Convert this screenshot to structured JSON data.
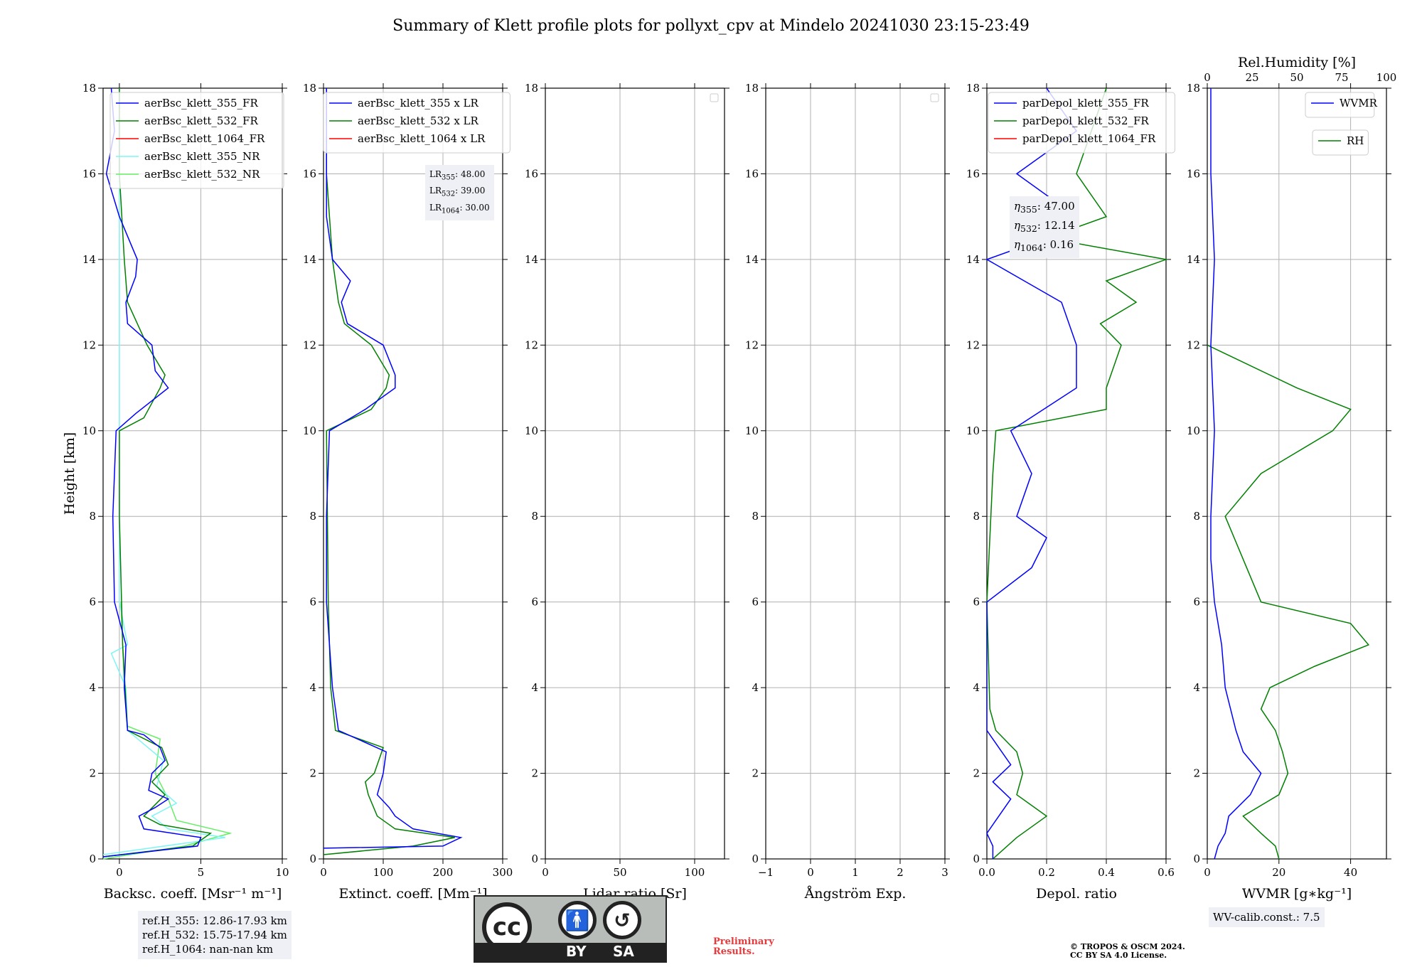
{
  "title": "Summary of Klett profile plots for pollyxt_cpv at Mindelo 20241030 23:15-23:49",
  "colors": {
    "blue": "#0000ff",
    "green": "#008000",
    "red": "#ff0000",
    "cyan": "#7ff5f5",
    "lightgreen": "#66ee66"
  },
  "y_axis": {
    "label": "Height [km]",
    "ticks": [
      "0",
      "2",
      "4",
      "6",
      "8",
      "10",
      "12",
      "14",
      "16",
      "18"
    ],
    "ylim": [
      0,
      18
    ]
  },
  "panels": [
    {
      "xlabel": "Backsc. coeff. [Msr⁻¹ m⁻¹]",
      "xticks": [
        "0",
        "5",
        "10"
      ],
      "xlim": [
        -1,
        10
      ]
    },
    {
      "xlabel": "Extinct. coeff. [Mm⁻¹]",
      "xticks": [
        "0",
        "100",
        "200",
        "300"
      ],
      "xlim": [
        0,
        300
      ]
    },
    {
      "xlabel": "Lidar ratio [Sr]",
      "xticks": [
        "0",
        "50",
        "100"
      ],
      "xlim": [
        0,
        120
      ]
    },
    {
      "xlabel": "Ångström Exp.",
      "xticks": [
        "−1",
        "0",
        "1",
        "2",
        "3"
      ],
      "xlim": [
        -1,
        3
      ]
    },
    {
      "xlabel": "Depol. ratio",
      "xticks": [
        "0.0",
        "0.2",
        "0.4",
        "0.6"
      ],
      "xlim": [
        0,
        0.6
      ]
    },
    {
      "xlabel": "WVMR [g∗kg⁻¹]",
      "xticks": [
        "0",
        "20",
        "40"
      ],
      "xlim": [
        0,
        50
      ],
      "top_label": "Rel.Humidity [%]",
      "top_ticks": [
        "0",
        "25",
        "50",
        "75",
        "100"
      ]
    }
  ],
  "legends": {
    "bsc": [
      "aerBsc_klett_355_FR",
      "aerBsc_klett_532_FR",
      "aerBsc_klett_1064_FR",
      "aerBsc_klett_355_NR",
      "aerBsc_klett_532_NR"
    ],
    "ext": [
      "aerBsc_klett_355 x LR",
      "aerBsc_klett_532 x LR",
      "aerBsc_klett_1064 x LR"
    ],
    "dep": [
      "parDepol_klett_355_FR",
      "parDepol_klett_532_FR",
      "parDepol_klett_1064_FR"
    ],
    "wv": "WVMR",
    "rh": "RH"
  },
  "lr_box": {
    "l355": "48.00",
    "l532": "39.00",
    "l1064": "30.00"
  },
  "eta_box": {
    "e355": "47.00",
    "e532": "12.14",
    "e1064": "0.16"
  },
  "ref_box": [
    "ref.H_355: 12.86-17.93 km",
    "ref.H_532: 15.75-17.94 km",
    "ref.H_1064: nan-nan km"
  ],
  "wv_calib": "WV-calib.const.: 7.5",
  "license": {
    "cc": "cc",
    "by": "BY",
    "sa": "SA"
  },
  "preliminary": [
    "Preliminary",
    "Results."
  ],
  "copyright": [
    "© TROPOS & OSCM 2024.",
    "CC BY SA 4.0 License."
  ],
  "chart_data": {
    "type": "line",
    "bsc_355_FR": [
      [
        0.05,
        -1.0
      ],
      [
        0.3,
        4.8
      ],
      [
        0.5,
        5.0
      ],
      [
        0.7,
        1.5
      ],
      [
        1.0,
        1.2
      ],
      [
        1.2,
        2.2
      ],
      [
        1.4,
        3.0
      ],
      [
        1.6,
        1.8
      ],
      [
        2.0,
        2.0
      ],
      [
        2.3,
        2.8
      ],
      [
        2.6,
        2.5
      ],
      [
        2.9,
        1.5
      ],
      [
        3.0,
        0.5
      ],
      [
        4.0,
        0.3
      ],
      [
        5.0,
        0.4
      ],
      [
        6.0,
        -0.3
      ],
      [
        8.0,
        -0.4
      ],
      [
        9.0,
        -0.3
      ],
      [
        10.0,
        -0.2
      ],
      [
        10.4,
        1.0
      ],
      [
        11.0,
        3.0
      ],
      [
        11.4,
        2.2
      ],
      [
        12.0,
        2.0
      ],
      [
        12.5,
        0.5
      ],
      [
        13.0,
        0.4
      ],
      [
        13.6,
        1.0
      ],
      [
        14.0,
        1.1
      ],
      [
        15.0,
        0.0
      ],
      [
        16.0,
        -0.8
      ],
      [
        17.0,
        -0.3
      ],
      [
        18.0,
        -0.5
      ]
    ],
    "bsc_532_FR": [
      [
        0.05,
        -1.0
      ],
      [
        0.3,
        4.5
      ],
      [
        0.6,
        5.6
      ],
      [
        0.8,
        2.5
      ],
      [
        1.0,
        1.5
      ],
      [
        1.5,
        2.8
      ],
      [
        1.8,
        2.0
      ],
      [
        2.2,
        3.0
      ],
      [
        2.6,
        2.6
      ],
      [
        3.0,
        0.5
      ],
      [
        5.0,
        0.2
      ],
      [
        8.0,
        0.0
      ],
      [
        10.0,
        0.0
      ],
      [
        10.3,
        1.5
      ],
      [
        11.0,
        2.5
      ],
      [
        11.3,
        2.8
      ],
      [
        12.0,
        1.7
      ],
      [
        13.0,
        0.5
      ],
      [
        14.0,
        0.3
      ],
      [
        16.0,
        0.0
      ],
      [
        18.0,
        0.0
      ]
    ],
    "bsc_355_NR": [
      [
        0.1,
        -1.0
      ],
      [
        0.5,
        6.5
      ],
      [
        0.7,
        3.0
      ],
      [
        1.0,
        2.0
      ],
      [
        1.3,
        3.5
      ],
      [
        1.7,
        2.3
      ],
      [
        2.3,
        2.7
      ],
      [
        3.0,
        0.5
      ],
      [
        4.0,
        0.4
      ],
      [
        4.8,
        -0.5
      ],
      [
        5.0,
        0.5
      ],
      [
        6.0,
        0.0
      ],
      [
        16.0,
        0.0
      ],
      [
        17.0,
        0.0
      ],
      [
        18.0,
        0.0
      ]
    ],
    "bsc_532_NR": [
      [
        0.0,
        -1.0
      ],
      [
        0.3,
        4.0
      ],
      [
        0.6,
        6.8
      ],
      [
        0.9,
        3.5
      ],
      [
        1.4,
        3.0
      ],
      [
        2.0,
        2.2
      ],
      [
        2.8,
        2.5
      ],
      [
        3.1,
        0.5
      ],
      [
        4.0,
        0.3
      ],
      [
        6.0,
        0.1
      ]
    ],
    "ext_355": [
      [
        0.25,
        0
      ],
      [
        0.3,
        200
      ],
      [
        0.5,
        230
      ],
      [
        0.7,
        150
      ],
      [
        1.0,
        120
      ],
      [
        1.2,
        110
      ],
      [
        1.5,
        90
      ],
      [
        2.0,
        100
      ],
      [
        2.5,
        105
      ],
      [
        3.0,
        25
      ],
      [
        4.0,
        15
      ],
      [
        6.0,
        5
      ],
      [
        8.0,
        5
      ],
      [
        10.0,
        10
      ],
      [
        10.5,
        70
      ],
      [
        11.0,
        120
      ],
      [
        11.3,
        120
      ],
      [
        12.0,
        100
      ],
      [
        12.5,
        40
      ],
      [
        13.0,
        30
      ],
      [
        13.5,
        45
      ],
      [
        14.0,
        15
      ],
      [
        15.0,
        5
      ],
      [
        16.0,
        5
      ],
      [
        18.0,
        5
      ]
    ],
    "ext_532": [
      [
        0.1,
        0
      ],
      [
        0.3,
        150
      ],
      [
        0.5,
        220
      ],
      [
        0.7,
        120
      ],
      [
        1.0,
        90
      ],
      [
        1.5,
        75
      ],
      [
        1.8,
        70
      ],
      [
        2.0,
        85
      ],
      [
        2.6,
        100
      ],
      [
        3.0,
        20
      ],
      [
        4.0,
        12
      ],
      [
        6.0,
        8
      ],
      [
        10.0,
        5
      ],
      [
        10.5,
        80
      ],
      [
        11.0,
        105
      ],
      [
        11.3,
        110
      ],
      [
        12.0,
        80
      ],
      [
        12.5,
        35
      ],
      [
        13.0,
        25
      ],
      [
        14.0,
        15
      ],
      [
        16.0,
        5
      ],
      [
        18.0,
        5
      ]
    ],
    "dep_355": [
      [
        0.0,
        0.02
      ],
      [
        0.3,
        0.02
      ],
      [
        0.6,
        0.0
      ],
      [
        1.0,
        0.04
      ],
      [
        1.4,
        0.08
      ],
      [
        1.8,
        0.02
      ],
      [
        2.2,
        0.08
      ],
      [
        2.6,
        0.04
      ],
      [
        3.0,
        0.0
      ],
      [
        6.0,
        0.0
      ],
      [
        6.8,
        0.15
      ],
      [
        7.5,
        0.2
      ],
      [
        8.0,
        0.1
      ],
      [
        9.0,
        0.15
      ],
      [
        10.0,
        0.08
      ],
      [
        11.0,
        0.3
      ],
      [
        12.0,
        0.3
      ],
      [
        13.0,
        0.25
      ],
      [
        13.6,
        0.1
      ],
      [
        14.0,
        0.0
      ],
      [
        14.5,
        0.2
      ],
      [
        15.0,
        0.3
      ],
      [
        16.0,
        0.1
      ],
      [
        17.0,
        0.3
      ],
      [
        18.0,
        0.2
      ]
    ],
    "dep_532": [
      [
        0.0,
        0.02
      ],
      [
        0.5,
        0.1
      ],
      [
        1.0,
        0.2
      ],
      [
        1.5,
        0.1
      ],
      [
        2.0,
        0.12
      ],
      [
        2.5,
        0.1
      ],
      [
        3.0,
        0.03
      ],
      [
        3.5,
        0.01
      ],
      [
        6.0,
        0.0
      ],
      [
        9.0,
        0.02
      ],
      [
        10.0,
        0.03
      ],
      [
        10.5,
        0.4
      ],
      [
        11.0,
        0.4
      ],
      [
        12.0,
        0.45
      ],
      [
        12.5,
        0.38
      ],
      [
        13.0,
        0.5
      ],
      [
        13.5,
        0.4
      ],
      [
        14.0,
        0.6
      ],
      [
        14.5,
        0.2
      ],
      [
        15.0,
        0.4
      ],
      [
        16.0,
        0.3
      ],
      [
        18.0,
        0.4
      ]
    ],
    "wvmr": [
      [
        0.0,
        2
      ],
      [
        0.3,
        3
      ],
      [
        0.6,
        5
      ],
      [
        1.0,
        6
      ],
      [
        1.5,
        12
      ],
      [
        2.0,
        15
      ],
      [
        2.5,
        10
      ],
      [
        3.0,
        8
      ],
      [
        4.0,
        5
      ],
      [
        5.0,
        4
      ],
      [
        6.0,
        2
      ],
      [
        7.0,
        1
      ],
      [
        8.0,
        1
      ],
      [
        10.0,
        2
      ],
      [
        12.0,
        1
      ],
      [
        14.0,
        2
      ],
      [
        16.0,
        1
      ],
      [
        18.0,
        1
      ]
    ],
    "rh": [
      [
        0.0,
        40
      ],
      [
        0.3,
        38
      ],
      [
        0.6,
        30
      ],
      [
        1.0,
        20
      ],
      [
        1.5,
        40
      ],
      [
        2.0,
        45
      ],
      [
        2.5,
        42
      ],
      [
        3.0,
        38
      ],
      [
        3.5,
        30
      ],
      [
        4.0,
        35
      ],
      [
        4.5,
        60
      ],
      [
        5.0,
        90
      ],
      [
        5.5,
        80
      ],
      [
        6.0,
        30
      ],
      [
        7.0,
        20
      ],
      [
        8.0,
        10
      ],
      [
        9.0,
        30
      ],
      [
        9.5,
        50
      ],
      [
        10.0,
        70
      ],
      [
        10.5,
        80
      ],
      [
        11.0,
        50
      ],
      [
        12.0,
        0
      ]
    ]
  }
}
